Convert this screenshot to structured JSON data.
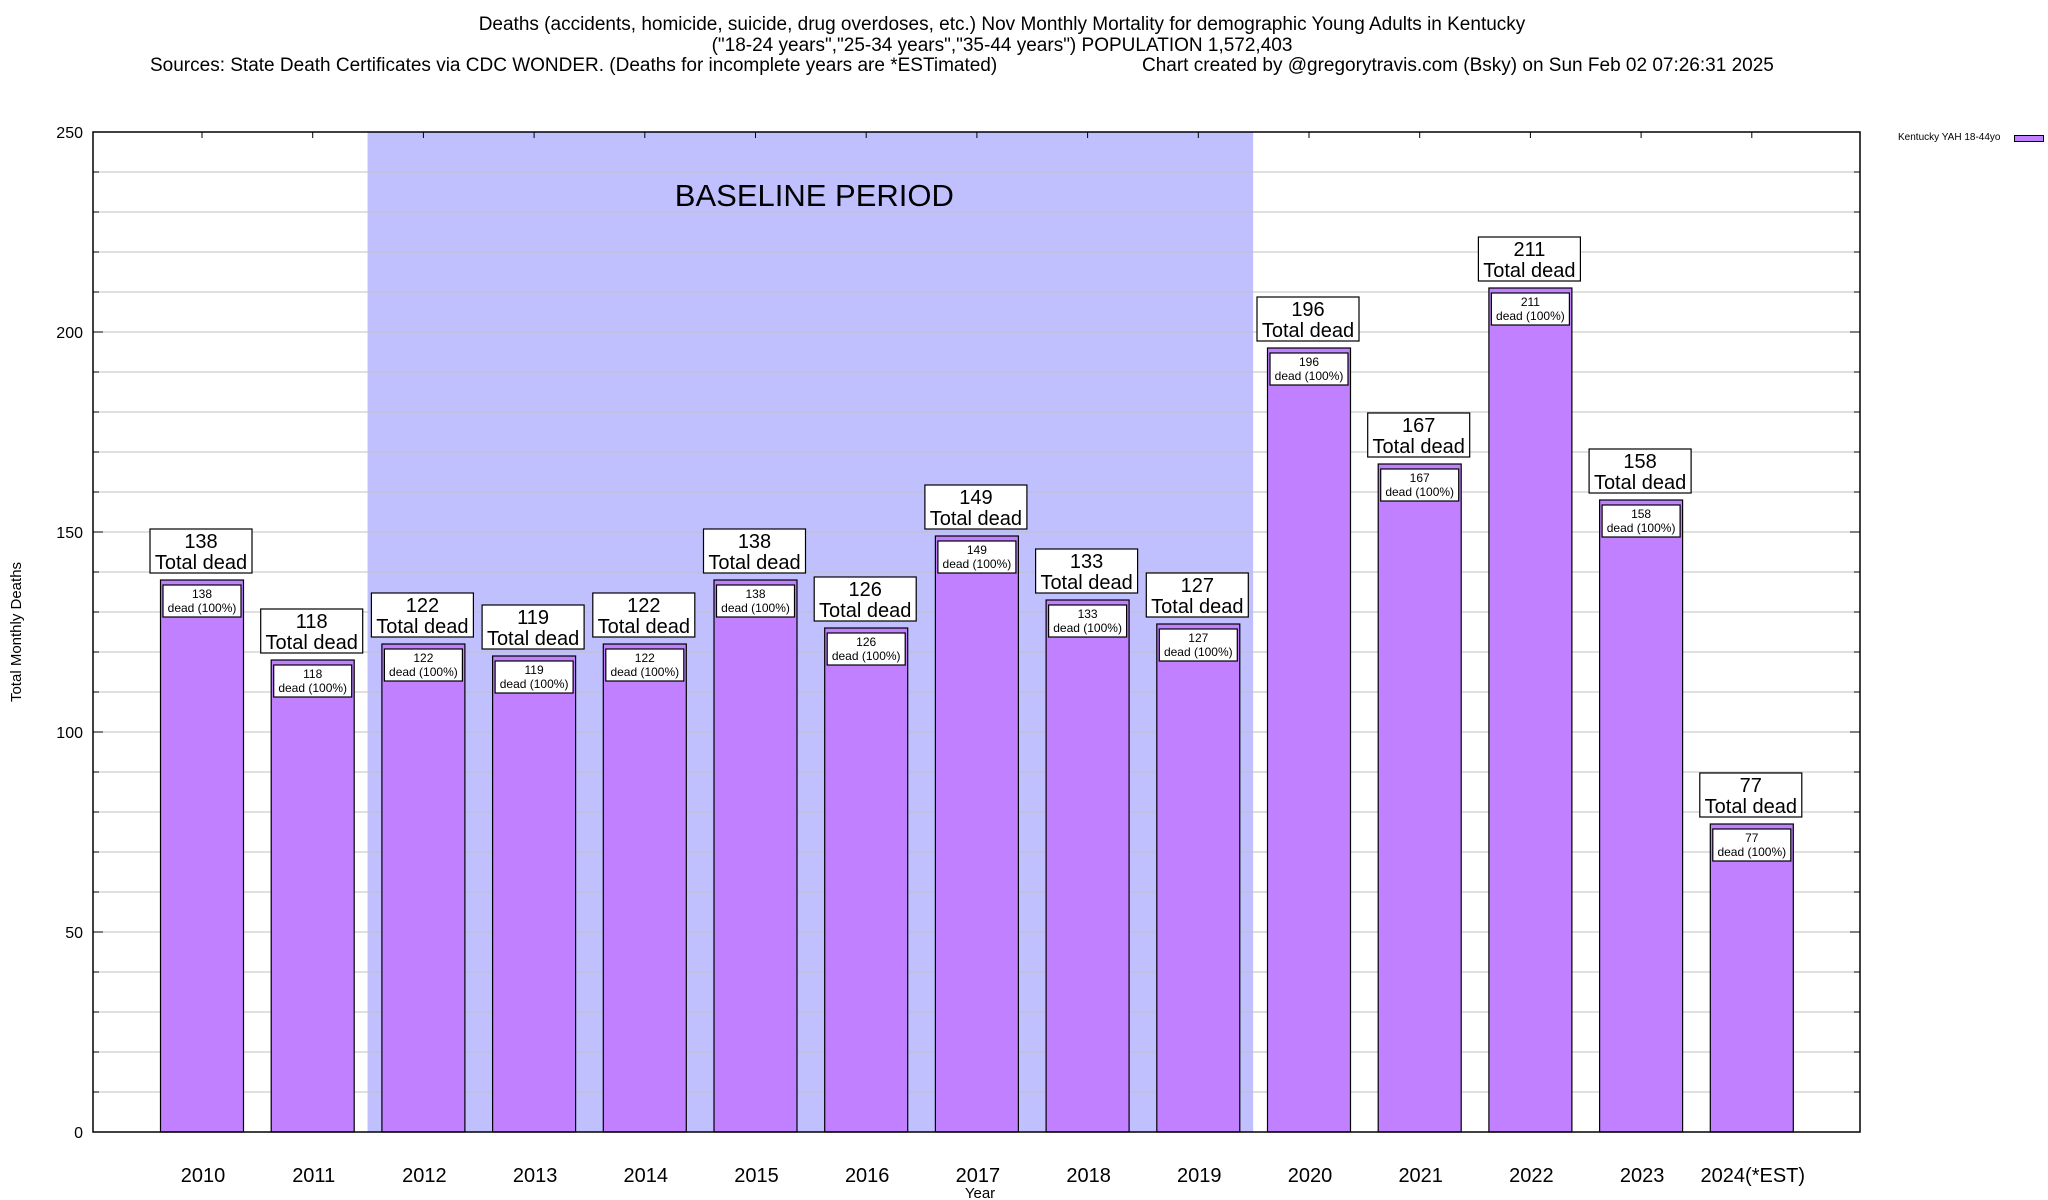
{
  "chart_data": {
    "type": "bar",
    "title": "Deaths (accidents, homicide, suicide, drug overdoses, etc.) Nov Monthly Mortality for demographic Young Adults in Kentucky",
    "subtitle": "(\"18-24 years\",\"25-34 years\",\"35-44 years\") POPULATION 1,572,403",
    "sources": "Sources: State Death Certificates via CDC WONDER. (Deaths for incomplete years are *ESTimated)",
    "credit": "Chart created by @gregorytravis.com (Bsky) on Sun Feb 02 07:26:31 2025",
    "xlabel": "Year",
    "ylabel": "Total Monthly Deaths",
    "ylim": [
      0,
      250
    ],
    "yticks": [
      0,
      50,
      100,
      150,
      200,
      250
    ],
    "grid": true,
    "legend_position": "top-right",
    "categories": [
      "2010",
      "2011",
      "2012",
      "2013",
      "2014",
      "2015",
      "2016",
      "2017",
      "2018",
      "2019",
      "2020",
      "2021",
      "2022",
      "2023",
      "2024(*EST)"
    ],
    "series": [
      {
        "name": "Kentucky YAH 18-44yo",
        "color": "#c080ff",
        "values": [
          138,
          118,
          122,
          119,
          122,
          138,
          126,
          149,
          133,
          127,
          196,
          167,
          211,
          158,
          77
        ]
      }
    ],
    "annotation": {
      "label": "BASELINE PERIOD",
      "from_category": "2012",
      "to_category": "2019",
      "color": "#c0c0ff"
    },
    "top_label_suffix": "Total dead",
    "inner_label_suffix": "dead (100%)"
  }
}
